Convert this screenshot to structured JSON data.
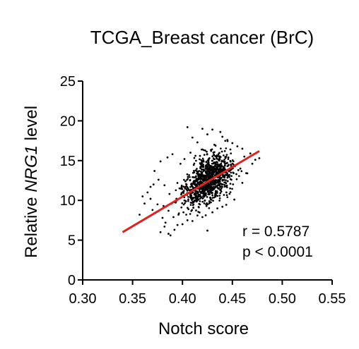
{
  "chart_data": {
    "type": "scatter",
    "title": "TCGA_Breast cancer (BrC)",
    "xlabel": "Notch score",
    "ylabel_prefix": "Relative ",
    "ylabel_gene": "NRG1",
    "ylabel_suffix": " level",
    "xlim": [
      0.3,
      0.55
    ],
    "ylim": [
      0,
      25
    ],
    "x_ticks": [
      "0.30",
      "0.35",
      "0.40",
      "0.45",
      "0.50",
      "0.55"
    ],
    "y_ticks": [
      "0",
      "5",
      "10",
      "15",
      "20",
      "25"
    ],
    "grid": false,
    "point_color": "#000000",
    "fit_color": "#e0211d",
    "fit_line": {
      "x": [
        0.34,
        0.477
      ],
      "y": [
        6.0,
        16.2
      ]
    },
    "annotations": {
      "r": "r = 0.5787",
      "p": "p < 0.0001"
    },
    "points": [
      [
        0.405,
        19.2
      ],
      [
        0.42,
        19.0
      ],
      [
        0.43,
        18.9
      ],
      [
        0.438,
        18.6
      ],
      [
        0.425,
        18.3
      ],
      [
        0.44,
        18.0
      ],
      [
        0.41,
        17.9
      ],
      [
        0.445,
        17.6
      ],
      [
        0.415,
        17.3
      ],
      [
        0.45,
        17.2
      ],
      [
        0.432,
        17.0
      ],
      [
        0.455,
        16.8
      ],
      [
        0.46,
        16.5
      ],
      [
        0.448,
        16.4
      ],
      [
        0.42,
        16.4
      ],
      [
        0.468,
        15.9
      ],
      [
        0.477,
        15.3
      ],
      [
        0.39,
        15.8
      ],
      [
        0.385,
        15.4
      ],
      [
        0.378,
        14.9
      ],
      [
        0.372,
        13.7
      ],
      [
        0.365,
        11.0
      ],
      [
        0.36,
        10.5
      ],
      [
        0.357,
        8.2
      ],
      [
        0.362,
        9.6
      ],
      [
        0.368,
        10.2
      ],
      [
        0.37,
        8.8
      ],
      [
        0.375,
        9.5
      ],
      [
        0.38,
        7.8
      ],
      [
        0.383,
        7.2
      ],
      [
        0.382,
        6.7
      ],
      [
        0.386,
        5.8
      ],
      [
        0.388,
        5.6
      ],
      [
        0.392,
        6.3
      ],
      [
        0.395,
        6.9
      ],
      [
        0.378,
        6.0
      ],
      [
        0.4,
        7.0
      ],
      [
        0.405,
        7.5
      ],
      [
        0.41,
        7.4
      ],
      [
        0.415,
        8.1
      ],
      [
        0.42,
        7.9
      ],
      [
        0.425,
        6.2
      ],
      [
        0.43,
        8.5
      ],
      [
        0.435,
        9.0
      ],
      [
        0.44,
        9.2
      ],
      [
        0.452,
        10.1
      ],
      [
        0.46,
        12.2
      ],
      [
        0.465,
        13.4
      ],
      [
        0.47,
        14.6
      ],
      [
        0.473,
        15.1
      ],
      [
        0.458,
        14.0
      ],
      [
        0.462,
        15.5
      ],
      [
        0.392,
        9.8
      ],
      [
        0.397,
        11.5
      ],
      [
        0.403,
        12.4
      ],
      [
        0.387,
        10.8
      ],
      [
        0.382,
        11.9
      ],
      [
        0.376,
        12.6
      ],
      [
        0.371,
        12.0
      ],
      [
        0.368,
        11.7
      ],
      [
        0.398,
        14.6
      ],
      [
        0.402,
        15.2
      ],
      [
        0.408,
        16.0
      ],
      [
        0.413,
        15.6
      ],
      [
        0.418,
        14.2
      ],
      [
        0.424,
        13.4
      ],
      [
        0.429,
        12.9
      ],
      [
        0.434,
        12.2
      ],
      [
        0.439,
        11.5
      ],
      [
        0.444,
        11.0
      ],
      [
        0.449,
        12.6
      ],
      [
        0.454,
        13.3
      ],
      [
        0.427,
        15.3
      ],
      [
        0.431,
        16.0
      ],
      [
        0.436,
        15.8
      ],
      [
        0.441,
        14.9
      ],
      [
        0.446,
        15.4
      ],
      [
        0.451,
        14.5
      ],
      [
        0.456,
        13.8
      ],
      [
        0.422,
        10.7
      ],
      [
        0.416,
        10.1
      ],
      [
        0.411,
        9.5
      ],
      [
        0.406,
        8.9
      ],
      [
        0.401,
        8.5
      ],
      [
        0.396,
        8.2
      ],
      [
        0.391,
        7.9
      ],
      [
        0.386,
        8.7
      ],
      [
        0.381,
        9.3
      ],
      [
        0.421,
        12.0
      ],
      [
        0.426,
        12.6
      ],
      [
        0.437,
        13.6
      ],
      [
        0.442,
        13.1
      ],
      [
        0.447,
        13.7
      ],
      [
        0.419,
        13.0
      ],
      [
        0.414,
        12.7
      ],
      [
        0.409,
        12.1
      ],
      [
        0.404,
        11.4
      ],
      [
        0.399,
        10.9
      ],
      [
        0.394,
        10.2
      ],
      [
        0.389,
        9.6
      ]
    ]
  }
}
